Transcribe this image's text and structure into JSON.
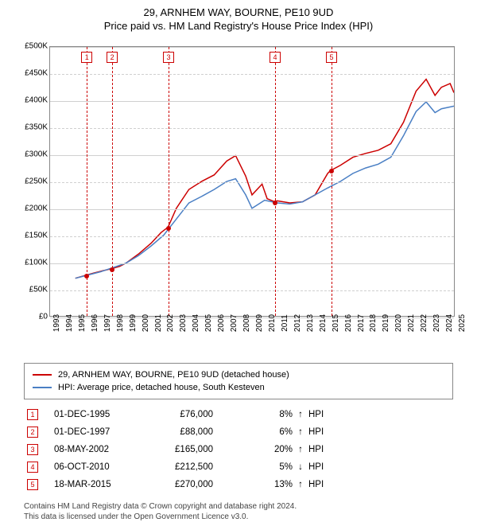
{
  "title_line1": "29, ARNHEM WAY, BOURNE, PE10 9UD",
  "title_line2": "Price paid vs. HM Land Registry's House Price Index (HPI)",
  "chart": {
    "type": "line",
    "background_color": "#ffffff",
    "grid_color": "#d0d0d0",
    "border_color": "#888888",
    "ylim": [
      0,
      500000
    ],
    "ytick_step": 50000,
    "yticks": [
      "£0",
      "£50K",
      "£100K",
      "£150K",
      "£200K",
      "£250K",
      "£300K",
      "£350K",
      "£400K",
      "£450K",
      "£500K"
    ],
    "xlim": [
      1993,
      2025
    ],
    "xticks": [
      "1993",
      "1994",
      "1995",
      "1996",
      "1997",
      "1998",
      "1999",
      "2000",
      "2001",
      "2002",
      "2003",
      "2004",
      "2005",
      "2006",
      "2007",
      "2008",
      "2009",
      "2010",
      "2011",
      "2012",
      "2013",
      "2014",
      "2015",
      "2016",
      "2017",
      "2018",
      "2019",
      "2020",
      "2021",
      "2022",
      "2023",
      "2024",
      "2025"
    ],
    "label_fontsize": 10,
    "title_fontsize": 13,
    "series": [
      {
        "name": "29, ARNHEM WAY, BOURNE, PE10 9UD (detached house)",
        "color": "#cc0000",
        "line_width": 1.5,
        "x": [
          1995.0,
          1995.9,
          1996.5,
          1997.0,
          1997.9,
          1998.5,
          1999.0,
          2000.0,
          2001.0,
          2001.8,
          2002.35,
          2003.0,
          2004.0,
          2005.0,
          2006.0,
          2007.0,
          2007.7,
          2008.5,
          2009.0,
          2009.8,
          2010.2,
          2010.76,
          2011.0,
          2012.0,
          2013.0,
          2014.0,
          2015.0,
          2015.21,
          2016.0,
          2017.0,
          2018.0,
          2019.0,
          2020.0,
          2021.0,
          2022.0,
          2022.8,
          2023.5,
          2024.0,
          2024.7,
          2025.0
        ],
        "y": [
          70000,
          76000,
          80000,
          83000,
          88000,
          92000,
          98000,
          115000,
          135000,
          155000,
          165000,
          200000,
          235000,
          250000,
          262000,
          288000,
          298000,
          260000,
          225000,
          245000,
          218000,
          212500,
          214000,
          210000,
          212000,
          225000,
          265000,
          270000,
          280000,
          295000,
          302000,
          308000,
          320000,
          360000,
          418000,
          440000,
          410000,
          425000,
          432000,
          415000
        ]
      },
      {
        "name": "HPI: Average price, detached house, South Kesteven",
        "color": "#4a7fc4",
        "line_width": 1.5,
        "x": [
          1995.0,
          1996.0,
          1997.0,
          1998.0,
          1999.0,
          2000.0,
          2001.0,
          2002.0,
          2003.0,
          2004.0,
          2005.0,
          2006.0,
          2007.0,
          2007.7,
          2008.5,
          2009.0,
          2010.0,
          2011.0,
          2012.0,
          2013.0,
          2014.0,
          2015.0,
          2016.0,
          2017.0,
          2018.0,
          2019.0,
          2020.0,
          2021.0,
          2022.0,
          2022.8,
          2023.5,
          2024.0,
          2025.0
        ],
        "y": [
          70000,
          76000,
          82000,
          90000,
          98000,
          112000,
          130000,
          150000,
          180000,
          210000,
          222000,
          235000,
          250000,
          255000,
          225000,
          200000,
          215000,
          210000,
          208000,
          212000,
          225000,
          238000,
          250000,
          265000,
          275000,
          282000,
          295000,
          335000,
          380000,
          398000,
          378000,
          385000,
          390000
        ]
      }
    ],
    "event_lines": [
      {
        "x": 1995.9,
        "label": "1"
      },
      {
        "x": 1997.9,
        "label": "2"
      },
      {
        "x": 2002.35,
        "label": "3"
      },
      {
        "x": 2010.76,
        "label": "4"
      },
      {
        "x": 2015.21,
        "label": "5"
      }
    ],
    "event_line_color": "#cc0000",
    "marker_box_border": "#cc0000",
    "marker_box_text": "#cc0000"
  },
  "legend": {
    "item1_label": "29, ARNHEM WAY, BOURNE, PE10 9UD (detached house)",
    "item1_color": "#cc0000",
    "item2_label": "HPI: Average price, detached house, South Kesteven",
    "item2_color": "#4a7fc4"
  },
  "table": {
    "hpi_label": "HPI",
    "rows": [
      {
        "n": "1",
        "date": "01-DEC-1995",
        "price": "£76,000",
        "pct": "8%",
        "arrow": "↑"
      },
      {
        "n": "2",
        "date": "01-DEC-1997",
        "price": "£88,000",
        "pct": "6%",
        "arrow": "↑"
      },
      {
        "n": "3",
        "date": "08-MAY-2002",
        "price": "£165,000",
        "pct": "20%",
        "arrow": "↑"
      },
      {
        "n": "4",
        "date": "06-OCT-2010",
        "price": "£212,500",
        "pct": "5%",
        "arrow": "↓"
      },
      {
        "n": "5",
        "date": "18-MAR-2015",
        "price": "£270,000",
        "pct": "13%",
        "arrow": "↑"
      }
    ]
  },
  "footer_line1": "Contains HM Land Registry data © Crown copyright and database right 2024.",
  "footer_line2": "This data is licensed under the Open Government Licence v3.0."
}
